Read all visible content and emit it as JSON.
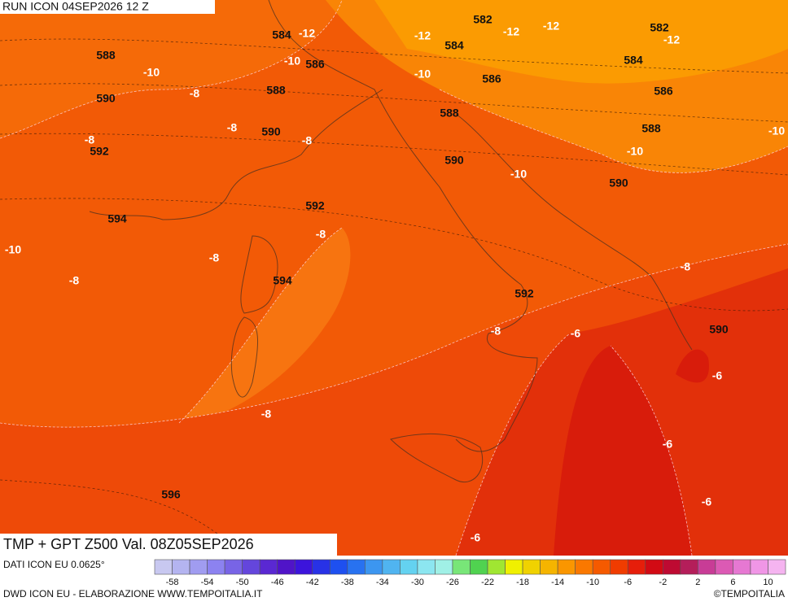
{
  "header": {
    "run": "RUN ICON 04SEP2026 12 Z",
    "title": "TMP + GPT Z500 Val. 08Z05SEP2026"
  },
  "footer": {
    "source": "DATI ICON EU 0.0625°",
    "credit": "DWD ICON EU - ELABORAZIONE WWW.TEMPOITALIA.IT",
    "copyright": "©TEMPOITALIA"
  },
  "colorbar": {
    "ticks": [
      -58,
      -54,
      -50,
      -46,
      -42,
      -38,
      -34,
      -30,
      -26,
      -22,
      -18,
      -14,
      -10,
      -6,
      -2,
      2,
      6,
      10
    ],
    "colors": [
      "#c8c8f0",
      "#b4b4f0",
      "#a09cf0",
      "#8c82f0",
      "#7864e6",
      "#6446dc",
      "#5a28d2",
      "#5014c8",
      "#3c14dc",
      "#2832e6",
      "#1e50f0",
      "#2872f0",
      "#3c96f0",
      "#50b4f0",
      "#64d2f0",
      "#8ce6f0",
      "#a0f0e6",
      "#78e678",
      "#50d250",
      "#a0e632",
      "#f0f000",
      "#f0d200",
      "#f5b400",
      "#fa9600",
      "#fa7800",
      "#f55a00",
      "#f03c00",
      "#e61e0a",
      "#d20a14",
      "#be0a32",
      "#b41e5a",
      "#c83c96",
      "#dc5ab4",
      "#e678d2",
      "#f096e6",
      "#f5b4f0"
    ]
  },
  "geopotential_labels": [
    584,
    582,
    582,
    584,
    584,
    588,
    586,
    586,
    586,
    588,
    588,
    588,
    590,
    590,
    590,
    590,
    592,
    592,
    594,
    594,
    592,
    590,
    596
  ],
  "temperature_labels": [
    -12,
    -12,
    -12,
    -12,
    -12,
    -10,
    -10,
    -10,
    -8,
    -8,
    -8,
    -8,
    -10,
    -10,
    -10,
    -10,
    -8,
    -8,
    -8,
    -8,
    -8,
    -6,
    -6,
    -8,
    -6,
    -6,
    -6
  ]
}
